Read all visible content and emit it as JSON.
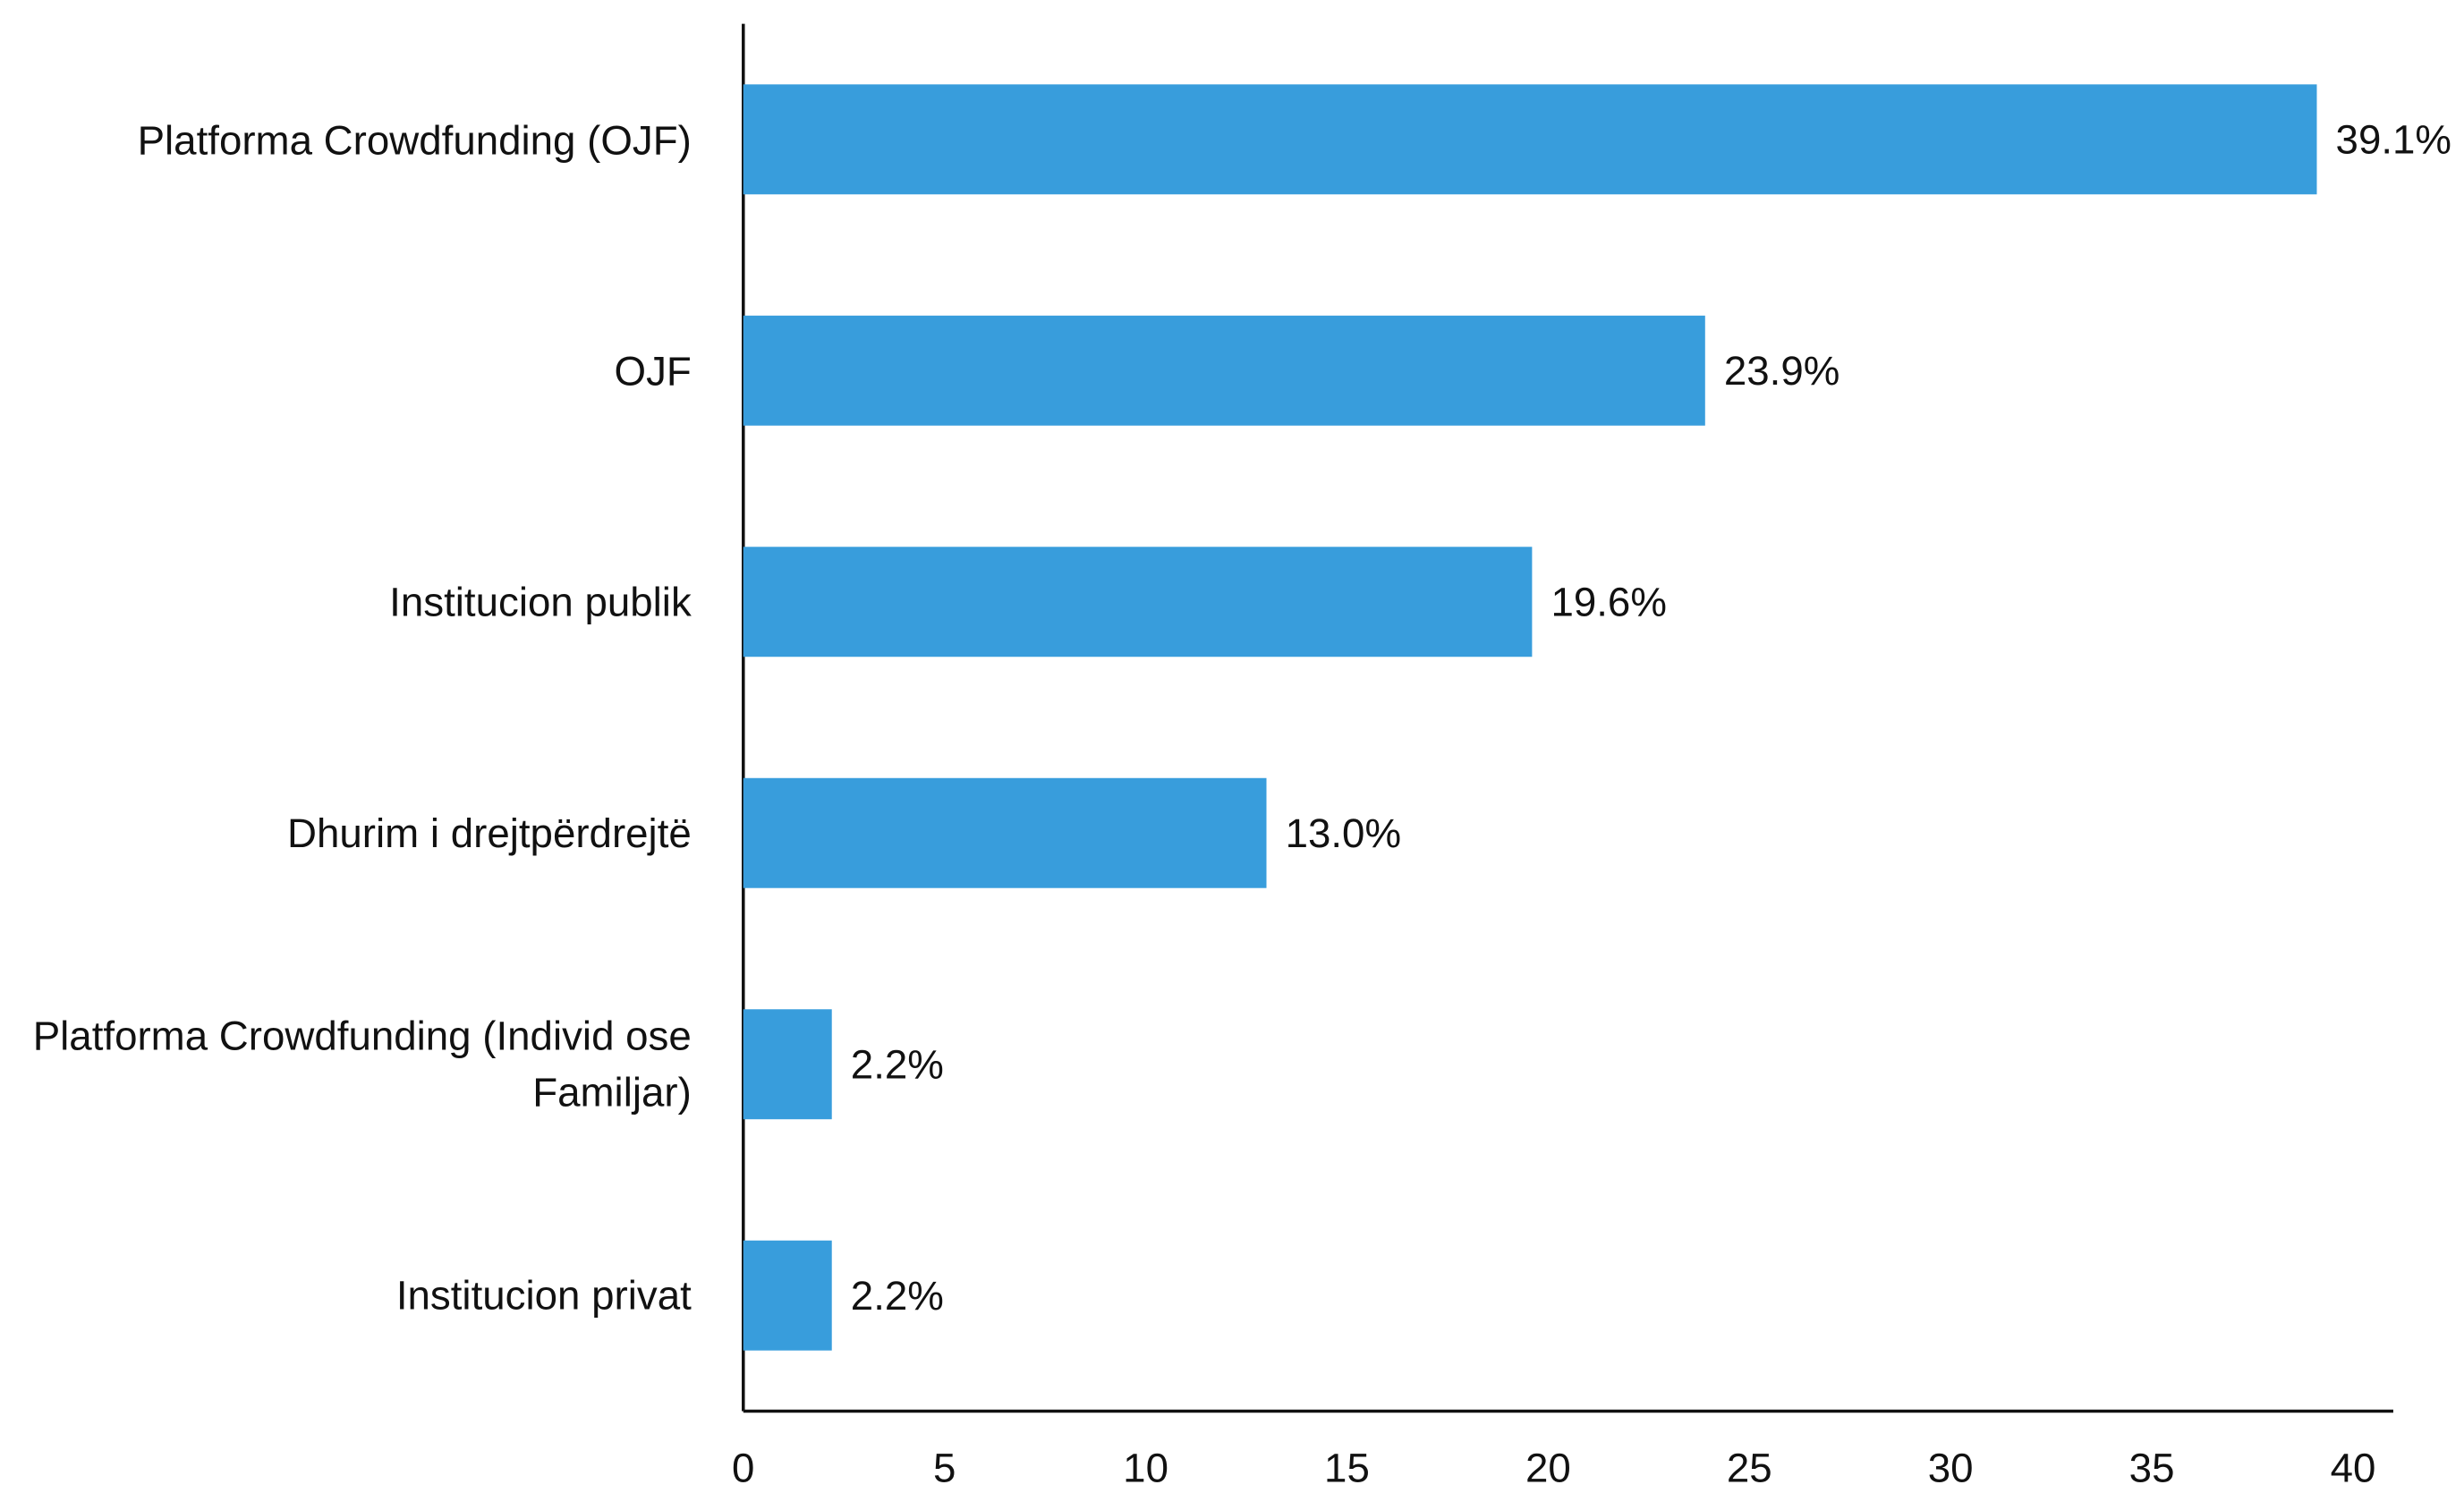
{
  "chart_data": {
    "type": "bar",
    "orientation": "horizontal",
    "categories": [
      "Platforma Crowdfunding (OJF)",
      "OJF",
      "Institucion publik",
      "Dhurim i drejtpërdrejtë",
      "Platforma Crowdfunding (Individ ose Familjar)",
      "Institucion privat"
    ],
    "values": [
      39.1,
      23.9,
      19.6,
      13.0,
      2.2,
      2.2
    ],
    "value_labels": [
      "39.1%",
      "23.9%",
      "19.6%",
      "13.0%",
      "2.2%",
      "2.2%"
    ],
    "color": "#389ddc",
    "xlim": [
      0,
      41
    ],
    "xticks": [
      0,
      5,
      10,
      15,
      20,
      25,
      30,
      35,
      40
    ],
    "grid": false
  }
}
